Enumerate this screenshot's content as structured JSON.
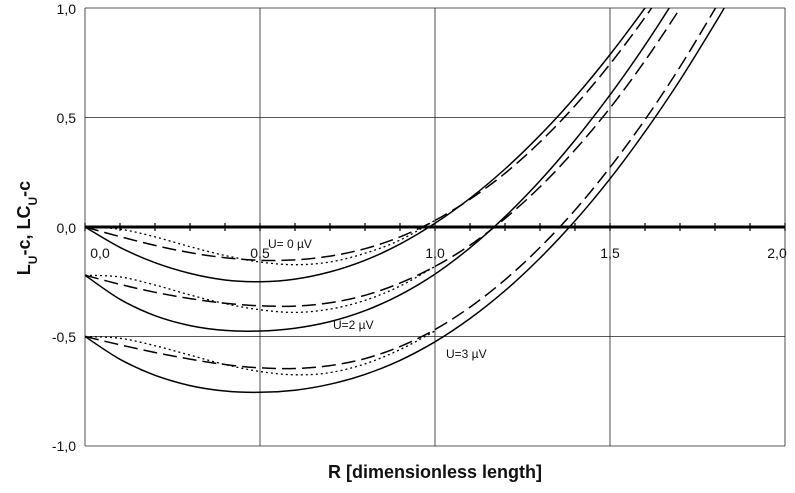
{
  "chart_data": {
    "type": "line",
    "title": "",
    "xlabel": "R [dimensionless length]",
    "ylabel_parts": {
      "a": "L",
      "a_sub": "U",
      "b": "-c, LC",
      "b_sub": "U",
      "c": "-c"
    },
    "xlim": [
      0,
      2
    ],
    "ylim": [
      -1,
      1
    ],
    "grid": true,
    "legend": "none",
    "x_ticks": [
      "0,0",
      "0,5",
      "1,0",
      "1,5",
      "2,0"
    ],
    "y_ticks": [
      "1,0",
      "0,5",
      "0,0",
      "-0,5",
      "-1,0"
    ],
    "annotations": [
      "U= 0 µV",
      "U=2 µV",
      "U=3 µV"
    ],
    "series": [
      {
        "style": "solid",
        "group": "U=0",
        "x": [
          0,
          0.1,
          0.2,
          0.3,
          0.4,
          0.5,
          0.6,
          0.7,
          0.8,
          0.9,
          1.0,
          1.1,
          1.2,
          1.3,
          1.4,
          1.5,
          1.6,
          1.656
        ],
        "y": [
          0,
          -0.093,
          -0.163,
          -0.212,
          -0.242,
          -0.25,
          -0.238,
          -0.205,
          -0.152,
          -0.078,
          0.017,
          0.131,
          0.265,
          0.419,
          0.593,
          0.787,
          1.0,
          1.129
        ]
      },
      {
        "style": "long-dash",
        "group": "U=0",
        "x": [
          0,
          0.1,
          0.2,
          0.3,
          0.4,
          0.5,
          0.6,
          0.7,
          0.8,
          0.9,
          1.0,
          1.1,
          1.2,
          1.3,
          1.4,
          1.5,
          1.6,
          1.656
        ],
        "y": [
          0,
          -0.044,
          -0.084,
          -0.117,
          -0.14,
          -0.152,
          -0.15,
          -0.133,
          -0.099,
          -0.045,
          0.03,
          0.127,
          0.245,
          0.388,
          0.554,
          0.744,
          0.957,
          1.09
        ]
      },
      {
        "style": "dotted",
        "group": "U=0",
        "x": [
          0,
          0.1,
          0.2,
          0.3,
          0.4,
          0.5,
          0.6,
          0.7,
          0.8,
          0.9,
          1.0
        ],
        "y": [
          0,
          -0.01,
          -0.045,
          -0.09,
          -0.13,
          -0.16,
          -0.172,
          -0.16,
          -0.12,
          -0.06,
          0.03
        ]
      },
      {
        "style": "solid",
        "group": "U=2",
        "x": [
          0,
          0.1,
          0.2,
          0.3,
          0.4,
          0.5,
          0.6,
          0.7,
          0.8,
          0.9,
          1.0,
          1.1,
          1.2,
          1.3,
          1.4,
          1.5,
          1.6,
          1.7,
          1.756
        ],
        "y": [
          -0.22,
          -0.33,
          -0.405,
          -0.45,
          -0.472,
          -0.475,
          -0.462,
          -0.432,
          -0.382,
          -0.31,
          -0.215,
          -0.095,
          0.047,
          0.211,
          0.397,
          0.603,
          0.83,
          1.078,
          1.226
        ]
      },
      {
        "style": "long-dash",
        "group": "U=2",
        "x": [
          0,
          0.1,
          0.2,
          0.3,
          0.4,
          0.5,
          0.6,
          0.7,
          0.8,
          0.9,
          1.0,
          1.1,
          1.2,
          1.3,
          1.4,
          1.5,
          1.6,
          1.7,
          1.756
        ],
        "y": [
          -0.22,
          -0.262,
          -0.298,
          -0.327,
          -0.348,
          -0.36,
          -0.361,
          -0.346,
          -0.312,
          -0.256,
          -0.18,
          -0.083,
          0.039,
          0.183,
          0.352,
          0.543,
          0.759,
          0.998,
          1.144
        ]
      },
      {
        "style": "dotted",
        "group": "U=2",
        "x": [
          0,
          0.1,
          0.2,
          0.3,
          0.4,
          0.5,
          0.6,
          0.7,
          0.8,
          0.9,
          1.0
        ],
        "y": [
          -0.22,
          -0.228,
          -0.265,
          -0.31,
          -0.35,
          -0.378,
          -0.39,
          -0.375,
          -0.335,
          -0.27,
          -0.18
        ]
      },
      {
        "style": "solid",
        "group": "U=3",
        "x": [
          0,
          0.1,
          0.2,
          0.3,
          0.4,
          0.5,
          0.6,
          0.7,
          0.8,
          0.9,
          1.0,
          1.1,
          1.2,
          1.3,
          1.4,
          1.5,
          1.6,
          1.7,
          1.8,
          1.83
        ],
        "y": [
          -0.5,
          -0.604,
          -0.677,
          -0.724,
          -0.749,
          -0.755,
          -0.745,
          -0.718,
          -0.673,
          -0.609,
          -0.524,
          -0.418,
          -0.291,
          -0.142,
          0.028,
          0.22,
          0.435,
          0.671,
          0.929,
          1.011
        ]
      },
      {
        "style": "long-dash",
        "group": "U=3",
        "x": [
          0,
          0.1,
          0.2,
          0.3,
          0.4,
          0.5,
          0.6,
          0.7,
          0.8,
          0.9,
          1.0,
          1.1,
          1.2,
          1.3,
          1.4,
          1.5,
          1.6,
          1.7,
          1.8,
          1.83
        ],
        "y": [
          -0.5,
          -0.538,
          -0.573,
          -0.603,
          -0.628,
          -0.643,
          -0.646,
          -0.633,
          -0.601,
          -0.546,
          -0.468,
          -0.366,
          -0.241,
          -0.093,
          0.077,
          0.272,
          0.49,
          0.731,
          0.996,
          1.08
        ]
      },
      {
        "style": "dotted",
        "group": "U=3",
        "x": [
          0,
          0.1,
          0.2,
          0.3,
          0.4,
          0.5,
          0.6,
          0.7,
          0.8,
          0.9,
          1.0
        ],
        "y": [
          -0.5,
          -0.508,
          -0.542,
          -0.585,
          -0.628,
          -0.66,
          -0.675,
          -0.665,
          -0.625,
          -0.56,
          -0.475
        ]
      }
    ]
  }
}
